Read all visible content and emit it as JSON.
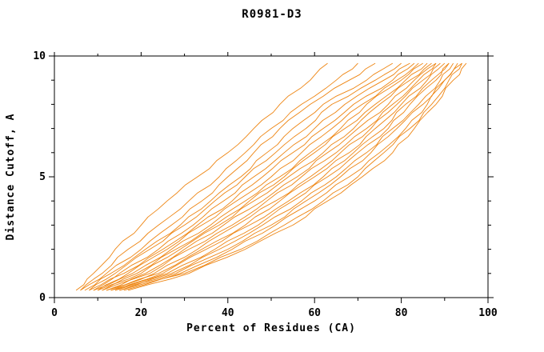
{
  "chart_data": {
    "type": "line",
    "title": "R0981-D3",
    "xlabel": "Percent of Residues (CA)",
    "ylabel": "Distance Cutoff, A",
    "xlim": [
      0,
      100
    ],
    "ylim": [
      0,
      10
    ],
    "grid": false,
    "legend": "none",
    "line_color": "#ee8512",
    "axis_color": "#000000",
    "background_color": "#ffffff",
    "x_major_ticks": [
      0,
      20,
      40,
      60,
      80,
      100
    ],
    "x_minor_ticks": [
      10,
      30,
      50,
      70,
      90
    ],
    "y_major_ticks": [
      0,
      5,
      10
    ],
    "y_minor_ticks": [
      1,
      2,
      3,
      4,
      6,
      7,
      8,
      9
    ],
    "anchor_y": [
      0.3,
      1,
      2,
      3,
      4,
      5,
      6,
      7,
      8,
      9,
      9.7
    ],
    "series": [
      {
        "x": [
          5,
          9,
          14,
          20,
          26,
          33,
          40,
          46,
          52,
          59,
          63
        ]
      },
      {
        "x": [
          6,
          11,
          17,
          24,
          31,
          38,
          44,
          50,
          57,
          65,
          70
        ]
      },
      {
        "x": [
          6,
          12,
          20,
          27,
          34,
          40,
          46,
          52,
          59,
          68,
          74
        ]
      },
      {
        "x": [
          7,
          13,
          21,
          29,
          36,
          43,
          49,
          55,
          62,
          72,
          78
        ]
      },
      {
        "x": [
          8,
          14,
          22,
          30,
          37,
          44,
          51,
          58,
          64,
          74,
          80
        ]
      },
      {
        "x": [
          9,
          15,
          24,
          32,
          39,
          46,
          53,
          60,
          67,
          76,
          82
        ]
      },
      {
        "x": [
          8,
          16,
          25,
          33,
          41,
          48,
          55,
          62,
          69,
          78,
          83
        ]
      },
      {
        "x": [
          10,
          17,
          26,
          34,
          42,
          50,
          57,
          64,
          71,
          79,
          84
        ]
      },
      {
        "x": [
          9,
          18,
          27,
          36,
          44,
          52,
          59,
          66,
          72,
          80,
          85
        ]
      },
      {
        "x": [
          11,
          19,
          28,
          37,
          45,
          53,
          60,
          67,
          74,
          81,
          86
        ]
      },
      {
        "x": [
          10,
          20,
          29,
          38,
          46,
          54,
          62,
          69,
          75,
          82,
          87
        ]
      },
      {
        "x": [
          12,
          21,
          30,
          39,
          48,
          56,
          63,
          70,
          77,
          83,
          88
        ]
      },
      {
        "x": [
          11,
          22,
          31,
          41,
          49,
          57,
          65,
          72,
          78,
          84,
          88
        ]
      },
      {
        "x": [
          13,
          23,
          33,
          42,
          51,
          59,
          66,
          73,
          79,
          85,
          89
        ]
      },
      {
        "x": [
          12,
          24,
          34,
          44,
          52,
          60,
          68,
          74,
          80,
          86,
          90
        ]
      },
      {
        "x": [
          14,
          25,
          35,
          45,
          54,
          62,
          69,
          76,
          81,
          87,
          91
        ]
      },
      {
        "x": [
          13,
          26,
          37,
          47,
          55,
          63,
          70,
          77,
          82,
          88,
          91
        ]
      },
      {
        "x": [
          15,
          27,
          38,
          48,
          57,
          65,
          72,
          78,
          84,
          89,
          92
        ]
      },
      {
        "x": [
          14,
          28,
          40,
          50,
          58,
          66,
          73,
          79,
          85,
          90,
          93
        ]
      },
      {
        "x": [
          16,
          29,
          41,
          51,
          60,
          68,
          75,
          81,
          86,
          90,
          94
        ]
      },
      {
        "x": [
          15,
          30,
          43,
          53,
          62,
          70,
          76,
          82,
          87,
          91,
          94
        ]
      },
      {
        "x": [
          17,
          31,
          44,
          55,
          63,
          71,
          78,
          83,
          88,
          92,
          95
        ]
      }
    ]
  }
}
